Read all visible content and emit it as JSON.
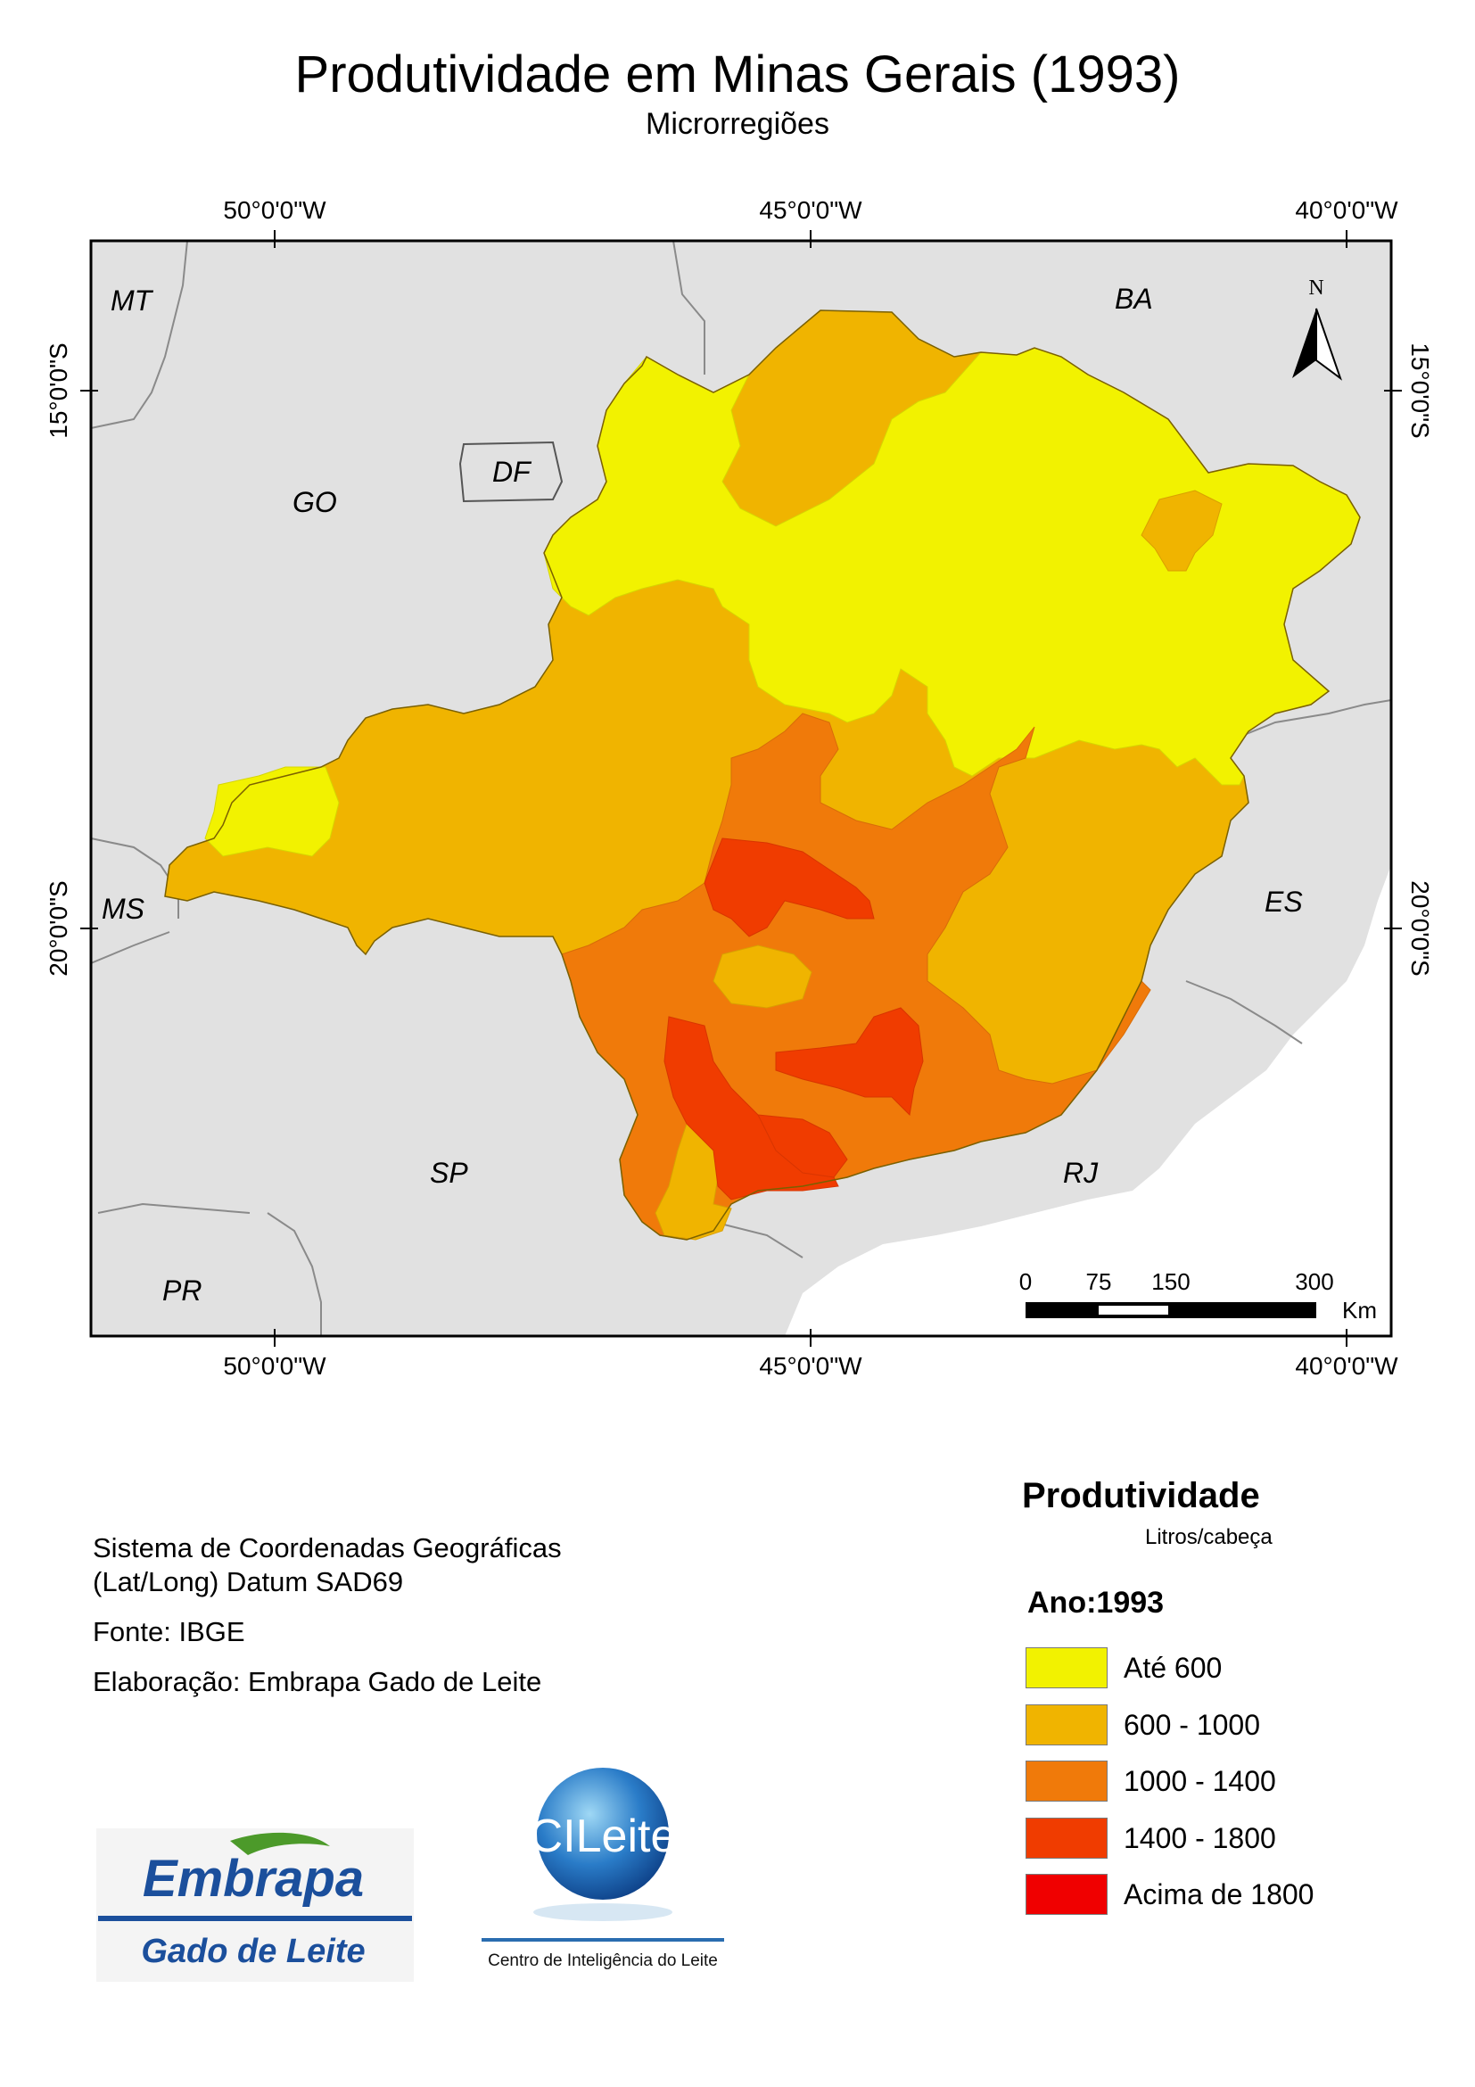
{
  "title": "Produtividade em Minas Gerais (1993)",
  "subtitle": "Microrregiões",
  "axes": {
    "top": [
      "50°0'0\"W",
      "45°0'0\"W",
      "40°0'0\"W"
    ],
    "bottom": [
      "50°0'0\"W",
      "45°0'0\"W",
      "40°0'0\"W"
    ],
    "left": [
      "15°0'0\"S",
      "20°0'0\"S"
    ],
    "right": [
      "15°0'0\"S",
      "20°0'0\"S"
    ]
  },
  "states": {
    "mt": "MT",
    "go": "GO",
    "df": "DF",
    "ba": "BA",
    "ms": "MS",
    "es": "ES",
    "sp": "SP",
    "rj": "RJ",
    "pr": "PR"
  },
  "north_arrow": "N",
  "scale_bar": {
    "ticks": [
      "0",
      "75",
      "150",
      "300"
    ],
    "unit": "Km"
  },
  "info": {
    "line1": "Sistema de Coordenadas Geográficas",
    "line2": "(Lat/Long) Datum SAD69",
    "source": "Fonte: IBGE",
    "credit": "Elaboração: Embrapa Gado de Leite"
  },
  "legend": {
    "title": "Produtividade",
    "unit": "Litros/cabeça",
    "year": "Ano:1993",
    "items": [
      {
        "label": "Até 600",
        "color": "#f2f200"
      },
      {
        "label": "600 - 1000",
        "color": "#f0b400"
      },
      {
        "label": "1000 - 1400",
        "color": "#f07a0a"
      },
      {
        "label": "1400 - 1800",
        "color": "#f03c00"
      },
      {
        "label": "Acima de 1800",
        "color": "#f00000"
      }
    ]
  },
  "logos": {
    "embrapa_word": "Embrapa",
    "embrapa_sub": "Gado de Leite",
    "cileite_word": "CILeite",
    "cileite_sub": "Centro de Inteligência do Leite"
  },
  "colors": {
    "background_land": "#e1e1e1",
    "embrapa_blue": "#1b4f9c",
    "embrapa_green": "#4c9a2a"
  }
}
